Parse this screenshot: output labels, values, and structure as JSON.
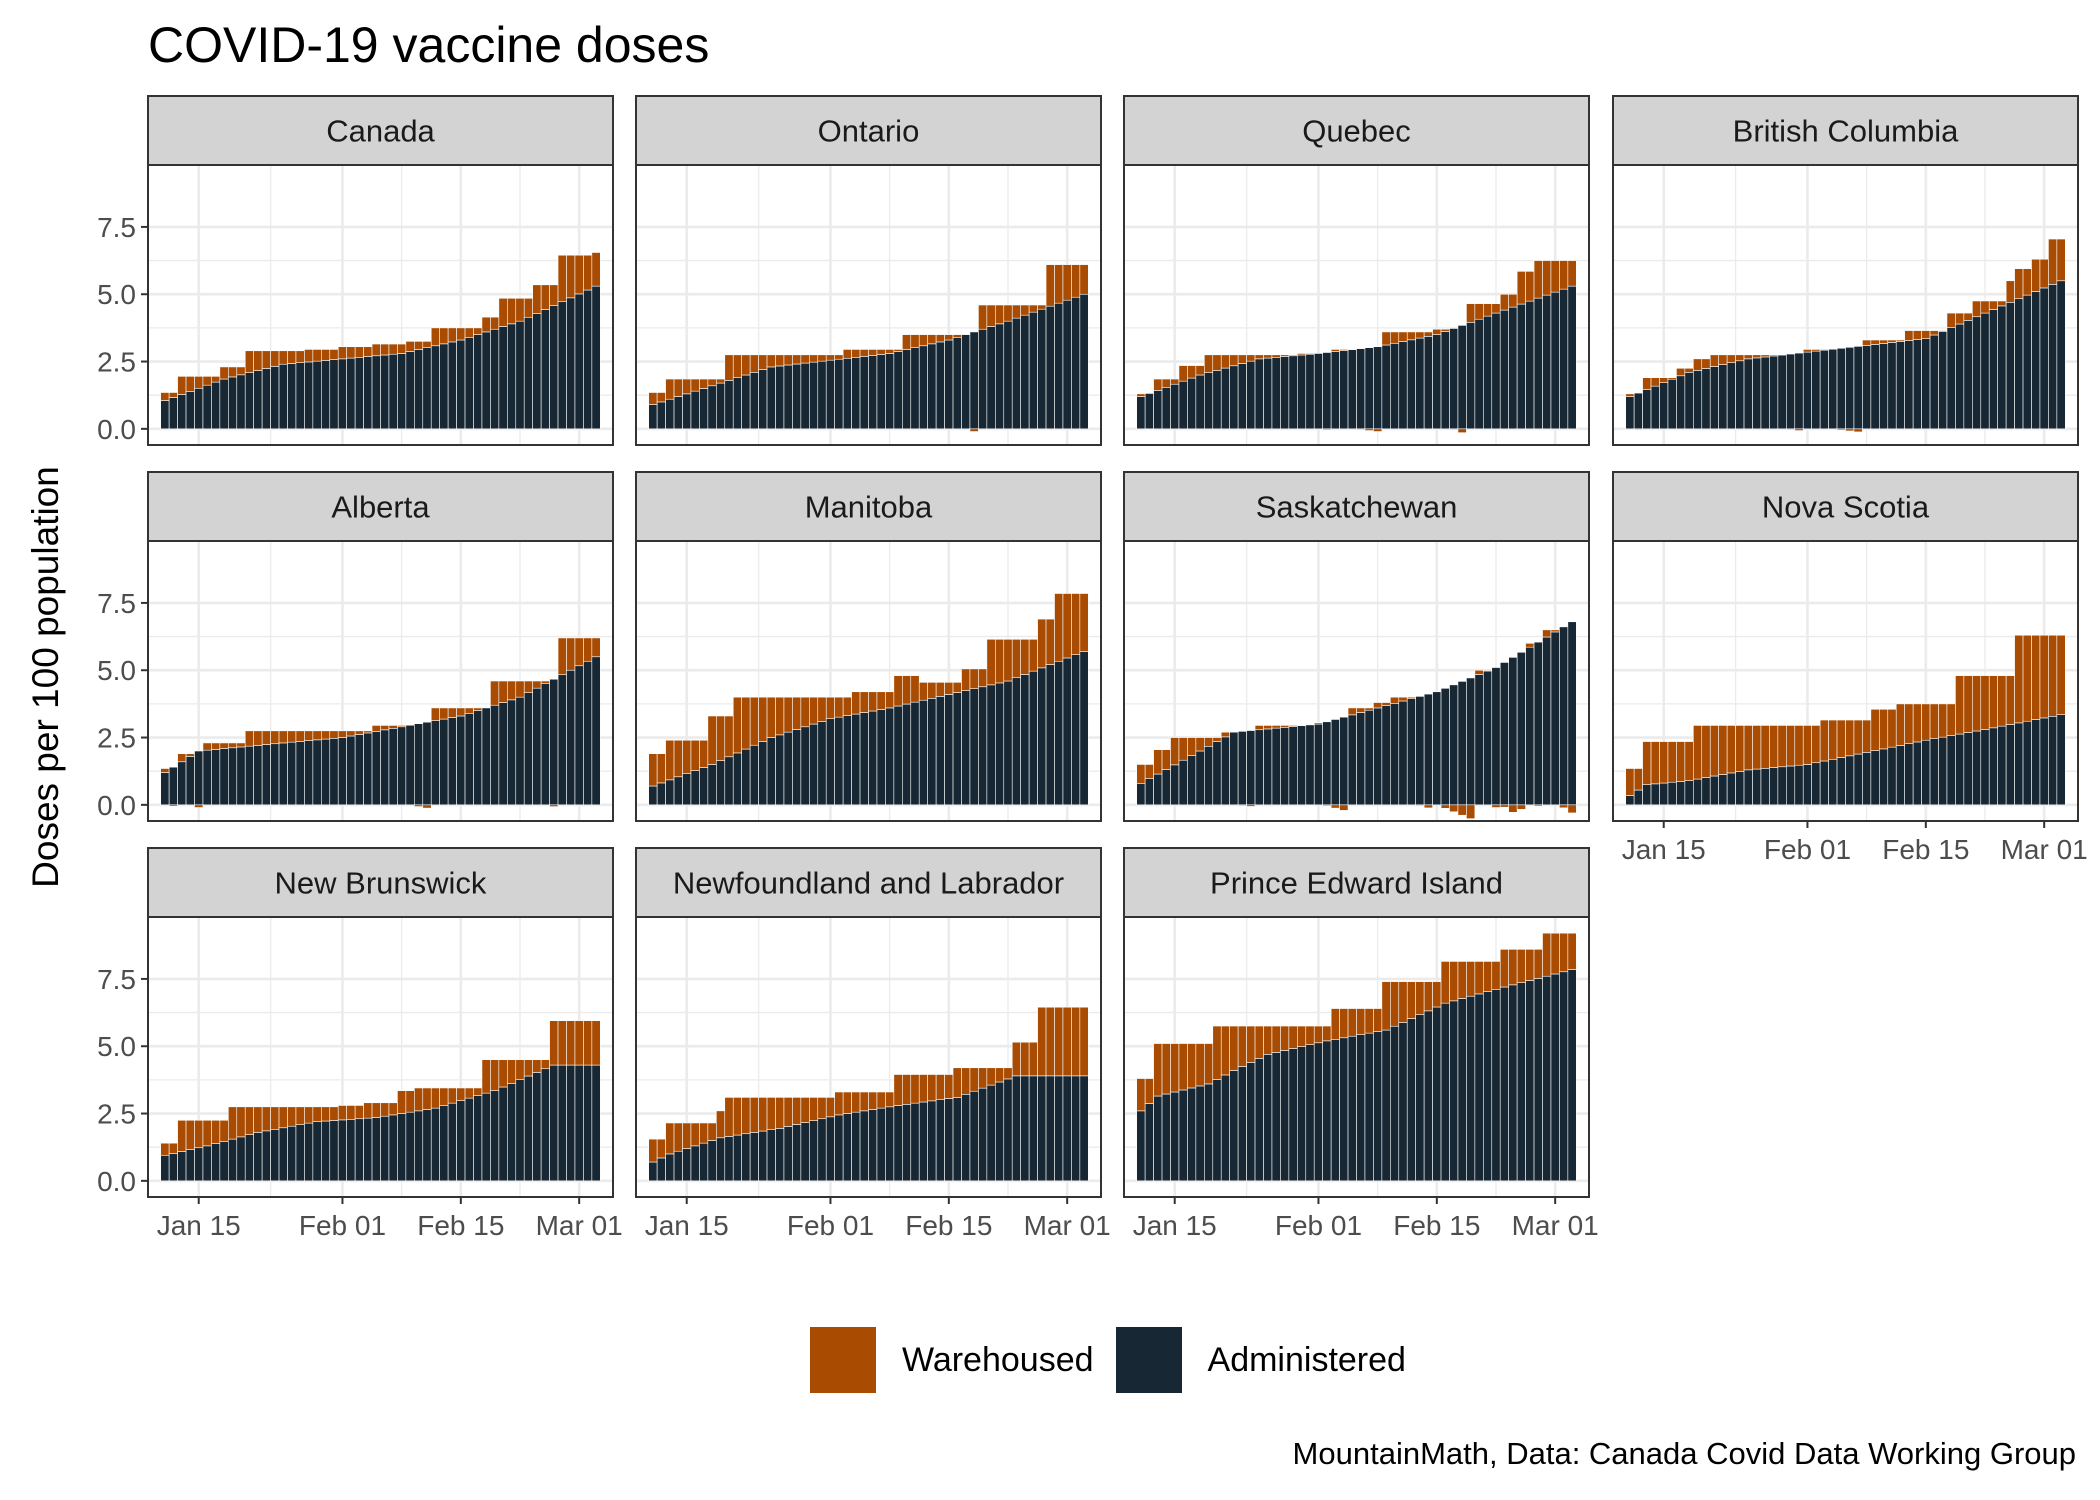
{
  "chart_data": {
    "type": "bar",
    "title": "COVID-19 vaccine doses",
    "ylabel": "Doses per 100 population",
    "caption": "MountainMath, Data: Canada Covid Data Working Group",
    "ylim": [
      -0.6,
      9.8
    ],
    "yticks": [
      0.0,
      2.5,
      5.0,
      7.5
    ],
    "ytick_labels": [
      "0.0",
      "2.5",
      "5.0",
      "7.5"
    ],
    "x_start": "2021-01-11",
    "x_end": "2021-03-03",
    "xlim": [
      "2021-01-09",
      "2021-03-05"
    ],
    "xticks": [
      "2021-01-15",
      "2021-02-01",
      "2021-02-15",
      "2021-03-01"
    ],
    "xtick_labels": [
      "Jan 15",
      "Feb 01",
      "Feb 15",
      "Mar 01"
    ],
    "stacked": true,
    "legend": {
      "position": "bottom",
      "entries": [
        {
          "name": "Warehoused",
          "color": "#a94b00"
        },
        {
          "name": "Administered",
          "color": "#172834"
        }
      ]
    },
    "colors": {
      "warehoused": "#a94b00",
      "administered": "#172834",
      "strip": "#d3d3d3",
      "grid": "#ebebeb"
    },
    "facets": [
      {
        "name": "Canada",
        "administered_anchors": [
          [
            "2021-01-11",
            1.05
          ],
          [
            "2021-01-18",
            1.85
          ],
          [
            "2021-01-25",
            2.4
          ],
          [
            "2021-02-01",
            2.6
          ],
          [
            "2021-02-08",
            2.8
          ],
          [
            "2021-02-15",
            3.3
          ],
          [
            "2021-02-22",
            4.0
          ],
          [
            "2021-03-03",
            5.3
          ]
        ],
        "delivered_steps": [
          [
            "2021-01-11",
            1.35
          ],
          [
            "2021-01-13",
            1.95
          ],
          [
            "2021-01-18",
            2.3
          ],
          [
            "2021-01-21",
            2.9
          ],
          [
            "2021-01-28",
            2.95
          ],
          [
            "2021-02-01",
            3.05
          ],
          [
            "2021-02-05",
            3.15
          ],
          [
            "2021-02-09",
            3.25
          ],
          [
            "2021-02-12",
            3.75
          ],
          [
            "2021-02-18",
            4.15
          ],
          [
            "2021-02-20",
            4.85
          ],
          [
            "2021-02-24",
            5.35
          ],
          [
            "2021-02-27",
            6.45
          ],
          [
            "2021-03-03",
            6.55
          ]
        ]
      },
      {
        "name": "Ontario",
        "administered_anchors": [
          [
            "2021-01-11",
            0.9
          ],
          [
            "2021-01-18",
            1.6
          ],
          [
            "2021-01-25",
            2.3
          ],
          [
            "2021-02-01",
            2.55
          ],
          [
            "2021-02-08",
            2.8
          ],
          [
            "2021-02-15",
            3.3
          ],
          [
            "2021-02-22",
            4.0
          ],
          [
            "2021-03-03",
            5.0
          ]
        ],
        "delivered_steps": [
          [
            "2021-01-11",
            1.35
          ],
          [
            "2021-01-13",
            1.85
          ],
          [
            "2021-01-20",
            2.75
          ],
          [
            "2021-02-03",
            2.95
          ],
          [
            "2021-02-10",
            3.5
          ],
          [
            "2021-02-19",
            4.6
          ],
          [
            "2021-02-27",
            6.1
          ]
        ]
      },
      {
        "name": "Quebec",
        "administered_anchors": [
          [
            "2021-01-11",
            1.2
          ],
          [
            "2021-01-18",
            2.0
          ],
          [
            "2021-01-25",
            2.6
          ],
          [
            "2021-02-01",
            2.8
          ],
          [
            "2021-02-08",
            3.05
          ],
          [
            "2021-02-15",
            3.5
          ],
          [
            "2021-02-22",
            4.3
          ],
          [
            "2021-03-03",
            5.3
          ]
        ],
        "delivered_steps": [
          [
            "2021-01-11",
            1.3
          ],
          [
            "2021-01-13",
            1.85
          ],
          [
            "2021-01-16",
            2.35
          ],
          [
            "2021-01-19",
            2.75
          ],
          [
            "2021-01-30",
            2.8
          ],
          [
            "2021-02-03",
            2.95
          ],
          [
            "2021-02-09",
            3.6
          ],
          [
            "2021-02-15",
            3.7
          ],
          [
            "2021-02-19",
            4.65
          ],
          [
            "2021-02-23",
            5.0
          ],
          [
            "2021-02-25",
            5.85
          ],
          [
            "2021-02-27",
            6.25
          ]
        ]
      },
      {
        "name": "British Columbia",
        "administered_anchors": [
          [
            "2021-01-11",
            1.2
          ],
          [
            "2021-01-18",
            2.1
          ],
          [
            "2021-01-25",
            2.6
          ],
          [
            "2021-02-01",
            2.85
          ],
          [
            "2021-02-08",
            3.1
          ],
          [
            "2021-02-15",
            3.35
          ],
          [
            "2021-02-22",
            4.3
          ],
          [
            "2021-03-03",
            5.5
          ]
        ],
        "delivered_steps": [
          [
            "2021-01-11",
            1.3
          ],
          [
            "2021-01-13",
            1.9
          ],
          [
            "2021-01-17",
            2.25
          ],
          [
            "2021-01-19",
            2.6
          ],
          [
            "2021-01-21",
            2.75
          ],
          [
            "2021-02-01",
            2.95
          ],
          [
            "2021-02-08",
            3.3
          ],
          [
            "2021-02-13",
            3.65
          ],
          [
            "2021-02-18",
            4.3
          ],
          [
            "2021-02-21",
            4.75
          ],
          [
            "2021-02-25",
            5.5
          ],
          [
            "2021-02-26",
            5.95
          ],
          [
            "2021-02-28",
            6.3
          ],
          [
            "2021-03-02",
            7.05
          ]
        ]
      },
      {
        "name": "Alberta",
        "administered_anchors": [
          [
            "2021-01-11",
            1.2
          ],
          [
            "2021-01-15",
            2.0
          ],
          [
            "2021-01-25",
            2.3
          ],
          [
            "2021-02-01",
            2.5
          ],
          [
            "2021-02-08",
            2.9
          ],
          [
            "2021-02-15",
            3.3
          ],
          [
            "2021-02-22",
            4.0
          ],
          [
            "2021-03-03",
            5.5
          ]
        ],
        "delivered_steps": [
          [
            "2021-01-11",
            1.35
          ],
          [
            "2021-01-13",
            1.9
          ],
          [
            "2021-01-16",
            2.3
          ],
          [
            "2021-01-21",
            2.75
          ],
          [
            "2021-02-05",
            2.95
          ],
          [
            "2021-02-12",
            3.6
          ],
          [
            "2021-02-19",
            4.6
          ],
          [
            "2021-02-27",
            6.2
          ]
        ]
      },
      {
        "name": "Manitoba",
        "administered_anchors": [
          [
            "2021-01-11",
            0.7
          ],
          [
            "2021-01-18",
            1.5
          ],
          [
            "2021-01-25",
            2.5
          ],
          [
            "2021-02-01",
            3.2
          ],
          [
            "2021-02-08",
            3.6
          ],
          [
            "2021-02-15",
            4.1
          ],
          [
            "2021-02-22",
            4.6
          ],
          [
            "2021-03-03",
            5.7
          ]
        ],
        "delivered_steps": [
          [
            "2021-01-11",
            1.9
          ],
          [
            "2021-01-13",
            2.4
          ],
          [
            "2021-01-18",
            3.3
          ],
          [
            "2021-01-21",
            4.0
          ],
          [
            "2021-02-04",
            4.2
          ],
          [
            "2021-02-09",
            4.8
          ],
          [
            "2021-02-12",
            4.55
          ],
          [
            "2021-02-17",
            5.05
          ],
          [
            "2021-02-20",
            6.15
          ],
          [
            "2021-02-26",
            6.9
          ],
          [
            "2021-02-28",
            7.85
          ]
        ]
      },
      {
        "name": "Saskatchewan",
        "administered_anchors": [
          [
            "2021-01-11",
            0.8
          ],
          [
            "2021-01-18",
            2.0
          ],
          [
            "2021-01-22",
            2.7
          ],
          [
            "2021-02-01",
            3.0
          ],
          [
            "2021-02-08",
            3.6
          ],
          [
            "2021-02-15",
            4.2
          ],
          [
            "2021-02-22",
            5.1
          ],
          [
            "2021-03-03",
            6.8
          ]
        ],
        "delivered_steps": [
          [
            "2021-01-11",
            1.5
          ],
          [
            "2021-01-13",
            2.05
          ],
          [
            "2021-01-15",
            2.5
          ],
          [
            "2021-01-21",
            2.7
          ],
          [
            "2021-01-25",
            2.95
          ],
          [
            "2021-02-01",
            3.05
          ],
          [
            "2021-02-05",
            3.6
          ],
          [
            "2021-02-08",
            3.8
          ],
          [
            "2021-02-10",
            4.0
          ],
          [
            "2021-02-15",
            4.2
          ],
          [
            "2021-02-20",
            5.0
          ],
          [
            "2021-02-23",
            5.2
          ],
          [
            "2021-02-25",
            5.5
          ],
          [
            "2021-02-26",
            6.0
          ],
          [
            "2021-02-28",
            6.5
          ]
        ]
      },
      {
        "name": "Nova Scotia",
        "administered_anchors": [
          [
            "2021-01-11",
            0.35
          ],
          [
            "2021-01-13",
            0.75
          ],
          [
            "2021-01-18",
            0.9
          ],
          [
            "2021-01-25",
            1.3
          ],
          [
            "2021-02-01",
            1.5
          ],
          [
            "2021-02-08",
            1.95
          ],
          [
            "2021-02-15",
            2.4
          ],
          [
            "2021-02-22",
            2.8
          ],
          [
            "2021-03-03",
            3.35
          ]
        ],
        "delivered_steps": [
          [
            "2021-01-11",
            1.35
          ],
          [
            "2021-01-13",
            2.35
          ],
          [
            "2021-01-19",
            2.95
          ],
          [
            "2021-02-03",
            3.15
          ],
          [
            "2021-02-09",
            3.55
          ],
          [
            "2021-02-12",
            3.75
          ],
          [
            "2021-02-19",
            4.8
          ],
          [
            "2021-02-26",
            6.3
          ]
        ]
      },
      {
        "name": "New Brunswick",
        "administered_anchors": [
          [
            "2021-01-11",
            0.95
          ],
          [
            "2021-01-16",
            1.3
          ],
          [
            "2021-01-22",
            1.8
          ],
          [
            "2021-01-29",
            2.2
          ],
          [
            "2021-02-05",
            2.35
          ],
          [
            "2021-02-12",
            2.7
          ],
          [
            "2021-02-19",
            3.35
          ],
          [
            "2021-02-26",
            4.3
          ]
        ],
        "delivered_steps": [
          [
            "2021-01-11",
            1.4
          ],
          [
            "2021-01-13",
            2.25
          ],
          [
            "2021-01-19",
            2.75
          ],
          [
            "2021-02-01",
            2.8
          ],
          [
            "2021-02-04",
            2.9
          ],
          [
            "2021-02-08",
            3.35
          ],
          [
            "2021-02-10",
            3.45
          ],
          [
            "2021-02-18",
            4.5
          ],
          [
            "2021-02-26",
            5.95
          ]
        ]
      },
      {
        "name": "Newfoundland and Labrador",
        "administered_anchors": [
          [
            "2021-01-11",
            0.7
          ],
          [
            "2021-01-13",
            1.0
          ],
          [
            "2021-01-19",
            1.6
          ],
          [
            "2021-01-26",
            1.95
          ],
          [
            "2021-02-02",
            2.45
          ],
          [
            "2021-02-09",
            2.8
          ],
          [
            "2021-02-16",
            3.1
          ],
          [
            "2021-02-23",
            3.9
          ]
        ],
        "delivered_steps": [
          [
            "2021-01-11",
            1.55
          ],
          [
            "2021-01-13",
            2.15
          ],
          [
            "2021-01-19",
            2.6
          ],
          [
            "2021-01-20",
            3.1
          ],
          [
            "2021-02-02",
            3.3
          ],
          [
            "2021-02-09",
            3.95
          ],
          [
            "2021-02-16",
            4.2
          ],
          [
            "2021-02-23",
            5.15
          ],
          [
            "2021-02-26",
            6.45
          ]
        ]
      },
      {
        "name": "Prince Edward Island",
        "administered_anchors": [
          [
            "2021-01-11",
            2.6
          ],
          [
            "2021-01-13",
            3.15
          ],
          [
            "2021-01-19",
            3.6
          ],
          [
            "2021-01-22",
            4.1
          ],
          [
            "2021-01-26",
            4.7
          ],
          [
            "2021-02-02",
            5.2
          ],
          [
            "2021-02-09",
            5.6
          ],
          [
            "2021-02-16",
            6.6
          ],
          [
            "2021-02-23",
            7.2
          ],
          [
            "2021-02-28",
            7.6
          ],
          [
            "2021-03-03",
            7.85
          ]
        ],
        "delivered_steps": [
          [
            "2021-01-11",
            3.8
          ],
          [
            "2021-01-13",
            5.1
          ],
          [
            "2021-01-20",
            5.75
          ],
          [
            "2021-02-03",
            6.4
          ],
          [
            "2021-02-09",
            7.4
          ],
          [
            "2021-02-16",
            8.15
          ],
          [
            "2021-02-23",
            8.6
          ],
          [
            "2021-02-28",
            9.2
          ]
        ]
      }
    ]
  }
}
